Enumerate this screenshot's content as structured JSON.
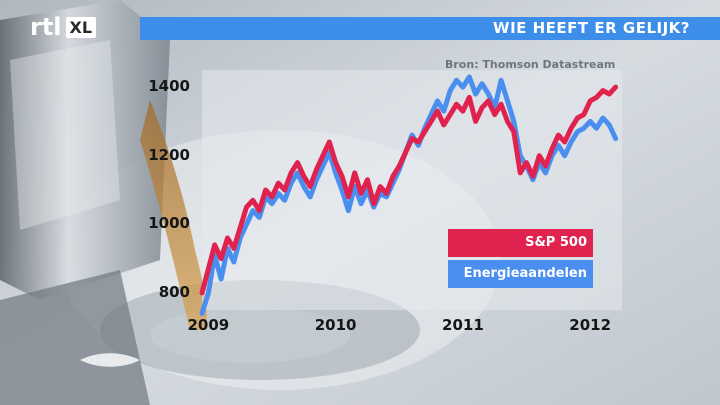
{
  "header": {
    "logo_text": "rtl",
    "logo_badge": "XL",
    "title": "WIE HEEFT ER GELIJK?"
  },
  "source": "Bron: Thomson Datastream",
  "colors": {
    "title_bar": "#3d8ee8",
    "sp500": "#e0224f",
    "energy": "#4a8ff0"
  },
  "chart_data": {
    "type": "line",
    "title": "WIE HEEFT ER GELIJK?",
    "xlabel": "",
    "ylabel": "",
    "ylim": [
      750,
      1450
    ],
    "xlim": [
      2009.0,
      2012.3
    ],
    "x_ticks": [
      "2009",
      "2010",
      "2011",
      "2012"
    ],
    "y_ticks": [
      "800",
      "1000",
      "1200",
      "1400"
    ],
    "legend_position": "bottom-right",
    "series": [
      {
        "name": "S&P 500",
        "color": "#e0224f",
        "x": [
          2009.0,
          2009.05,
          2009.1,
          2009.15,
          2009.2,
          2009.25,
          2009.3,
          2009.35,
          2009.4,
          2009.45,
          2009.5,
          2009.55,
          2009.6,
          2009.65,
          2009.7,
          2009.75,
          2009.8,
          2009.85,
          2009.9,
          2009.95,
          2010.0,
          2010.05,
          2010.1,
          2010.15,
          2010.2,
          2010.25,
          2010.3,
          2010.35,
          2010.4,
          2010.45,
          2010.5,
          2010.55,
          2010.6,
          2010.65,
          2010.7,
          2010.75,
          2010.8,
          2010.85,
          2010.9,
          2010.95,
          2011.0,
          2011.05,
          2011.1,
          2011.15,
          2011.2,
          2011.25,
          2011.3,
          2011.35,
          2011.4,
          2011.45,
          2011.5,
          2011.55,
          2011.6,
          2011.65,
          2011.7,
          2011.75,
          2011.8,
          2011.85,
          2011.9,
          2011.95,
          2012.0,
          2012.05,
          2012.1,
          2012.15,
          2012.2,
          2012.25
        ],
        "values": [
          800,
          870,
          940,
          900,
          960,
          930,
          990,
          1050,
          1070,
          1040,
          1100,
          1080,
          1120,
          1100,
          1150,
          1180,
          1140,
          1110,
          1160,
          1200,
          1240,
          1180,
          1140,
          1080,
          1150,
          1090,
          1130,
          1060,
          1110,
          1090,
          1140,
          1170,
          1210,
          1250,
          1240,
          1270,
          1300,
          1330,
          1290,
          1320,
          1350,
          1330,
          1370,
          1300,
          1340,
          1360,
          1320,
          1350,
          1300,
          1270,
          1150,
          1180,
          1140,
          1200,
          1170,
          1220,
          1260,
          1240,
          1280,
          1310,
          1320,
          1360,
          1370,
          1390,
          1380,
          1400
        ]
      },
      {
        "name": "Energieaandelen",
        "color": "#4a8ff0",
        "x": [
          2009.0,
          2009.05,
          2009.1,
          2009.15,
          2009.2,
          2009.25,
          2009.3,
          2009.35,
          2009.4,
          2009.45,
          2009.5,
          2009.55,
          2009.6,
          2009.65,
          2009.7,
          2009.75,
          2009.8,
          2009.85,
          2009.9,
          2009.95,
          2010.0,
          2010.05,
          2010.1,
          2010.15,
          2010.2,
          2010.25,
          2010.3,
          2010.35,
          2010.4,
          2010.45,
          2010.5,
          2010.55,
          2010.6,
          2010.65,
          2010.7,
          2010.75,
          2010.8,
          2010.85,
          2010.9,
          2010.95,
          2011.0,
          2011.05,
          2011.1,
          2011.15,
          2011.2,
          2011.25,
          2011.3,
          2011.35,
          2011.4,
          2011.45,
          2011.5,
          2011.55,
          2011.6,
          2011.65,
          2011.7,
          2011.75,
          2011.8,
          2011.85,
          2011.9,
          2011.95,
          2012.0,
          2012.05,
          2012.1,
          2012.15,
          2012.2,
          2012.25
        ],
        "values": [
          740,
          800,
          910,
          840,
          930,
          890,
          960,
          1000,
          1040,
          1020,
          1080,
          1060,
          1090,
          1070,
          1120,
          1150,
          1110,
          1080,
          1130,
          1170,
          1210,
          1150,
          1100,
          1040,
          1110,
          1060,
          1100,
          1050,
          1090,
          1080,
          1120,
          1160,
          1210,
          1260,
          1230,
          1280,
          1320,
          1360,
          1330,
          1390,
          1420,
          1400,
          1430,
          1380,
          1410,
          1380,
          1340,
          1420,
          1360,
          1300,
          1200,
          1170,
          1130,
          1180,
          1150,
          1200,
          1230,
          1200,
          1240,
          1270,
          1280,
          1300,
          1280,
          1310,
          1290,
          1250
        ]
      }
    ]
  }
}
